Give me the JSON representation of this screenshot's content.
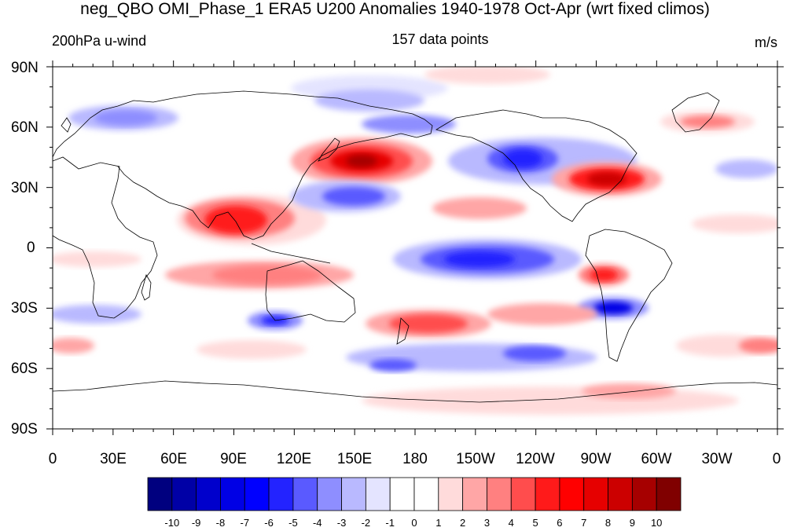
{
  "title": "neg_QBO OMI_Phase_1 ERA5 U200 Anomalies 1940-1978 Oct-Apr (wrt fixed climos)",
  "subtitles": {
    "left": "200hPa u-wind",
    "center": "157 data points",
    "right": "m/s"
  },
  "map": {
    "projection": "cylindrical-equidistant",
    "lat_labels": [
      "90N",
      "60N",
      "30N",
      "0",
      "30S",
      "60S",
      "90S"
    ],
    "lon_labels": [
      "0",
      "30E",
      "60E",
      "90E",
      "120E",
      "150E",
      "180",
      "150W",
      "120W",
      "90W",
      "60W",
      "30W",
      "0"
    ],
    "lon_range": [
      0,
      360
    ],
    "lat_range": [
      -90,
      90
    ],
    "variable": "U200 anomaly",
    "units": "m/s"
  },
  "colorbar": {
    "labels": [
      "-10",
      "-9",
      "-8",
      "-7",
      "-6",
      "-5",
      "-4",
      "-3",
      "-2",
      "-1",
      "0",
      "1",
      "2",
      "3",
      "4",
      "5",
      "6",
      "7",
      "8",
      "9",
      "10"
    ],
    "colors": [
      "#00007f",
      "#0000a6",
      "#0000cc",
      "#0000e5",
      "#0000ff",
      "#2323ff",
      "#5a5aff",
      "#8e8eff",
      "#b9b9ff",
      "#e4e4ff",
      "#ffffff",
      "#ffffff",
      "#ffdbdb",
      "#ffa6a6",
      "#ff8080",
      "#ff4d4d",
      "#ff1a1a",
      "#ff0000",
      "#e60000",
      "#cc0000",
      "#a60000",
      "#800000"
    ]
  }
}
